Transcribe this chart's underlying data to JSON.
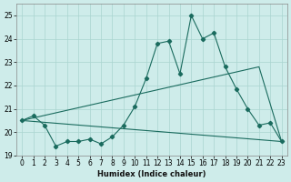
{
  "xlabel": "Humidex (Indice chaleur)",
  "background_color": "#ceecea",
  "grid_color": "#aad4d0",
  "line_color": "#1a6b5e",
  "x_values": [
    0,
    1,
    2,
    3,
    4,
    5,
    6,
    7,
    8,
    9,
    10,
    11,
    12,
    13,
    14,
    15,
    16,
    17,
    18,
    19,
    20,
    21,
    22,
    23
  ],
  "series1": [
    20.5,
    20.7,
    20.3,
    19.4,
    19.6,
    19.6,
    19.7,
    19.5,
    19.8,
    20.3,
    21.1,
    22.3,
    23.8,
    23.9,
    22.5,
    25.0,
    24.0,
    24.25,
    22.8,
    21.85,
    21.0,
    20.3,
    20.4,
    19.6
  ],
  "series2_x": [
    0,
    23
  ],
  "series2_y": [
    20.5,
    19.6
  ],
  "series3_x": [
    0,
    21,
    23
  ],
  "series3_y": [
    20.5,
    22.8,
    19.6
  ],
  "ylim": [
    19.0,
    25.5
  ],
  "xlim": [
    -0.5,
    23.5
  ],
  "yticks": [
    19,
    20,
    21,
    22,
    23,
    24,
    25
  ],
  "xticks": [
    0,
    1,
    2,
    3,
    4,
    5,
    6,
    7,
    8,
    9,
    10,
    11,
    12,
    13,
    14,
    15,
    16,
    17,
    18,
    19,
    20,
    21,
    22,
    23
  ]
}
